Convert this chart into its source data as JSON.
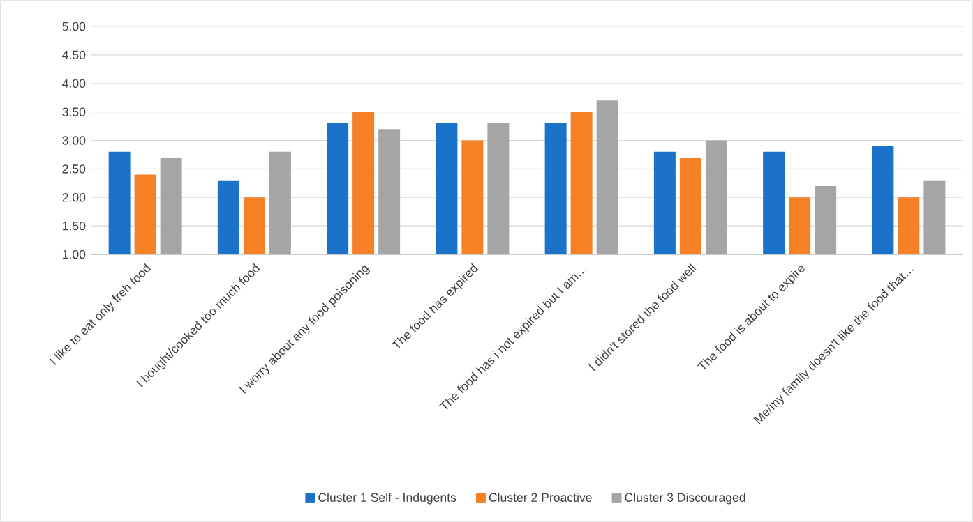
{
  "chart_data": {
    "type": "bar",
    "categories": [
      "I like to eat only freh food",
      "I bought/cooked too much food",
      "I worry about any food poisoning",
      "The food has expired",
      "The food has i not expired but I am…",
      "I didn't stored the food well",
      "The food is about to expire",
      "Me/my family doesn't like the food that…"
    ],
    "series": [
      {
        "name": "Cluster 1 Self - Indugents",
        "color": "#1a73c9",
        "values": [
          2.8,
          2.3,
          3.3,
          3.3,
          3.3,
          2.8,
          2.8,
          2.9
        ]
      },
      {
        "name": "Cluster 2 Proactive",
        "color": "#f58025",
        "values": [
          2.4,
          2.0,
          3.5,
          3.0,
          3.5,
          2.7,
          2.0,
          2.0
        ]
      },
      {
        "name": "Cluster 3 Discouraged",
        "color": "#a5a5a5",
        "values": [
          2.7,
          2.8,
          3.2,
          3.3,
          3.7,
          3.0,
          2.2,
          2.3
        ]
      }
    ],
    "ylim": [
      1,
      5
    ],
    "yticks": [
      {
        "value": 1,
        "label": "1.00"
      },
      {
        "value": 1.5,
        "label": "1.50"
      },
      {
        "value": 2,
        "label": "2.00"
      },
      {
        "value": 2.5,
        "label": "2.50"
      },
      {
        "value": 3,
        "label": "3.00"
      },
      {
        "value": 3.5,
        "label": "3.50"
      },
      {
        "value": 4,
        "label": "4.00"
      },
      {
        "value": 4.5,
        "label": "4.50"
      },
      {
        "value": 5,
        "label": "5.00"
      }
    ],
    "grid": "y",
    "legend": "bottom"
  }
}
